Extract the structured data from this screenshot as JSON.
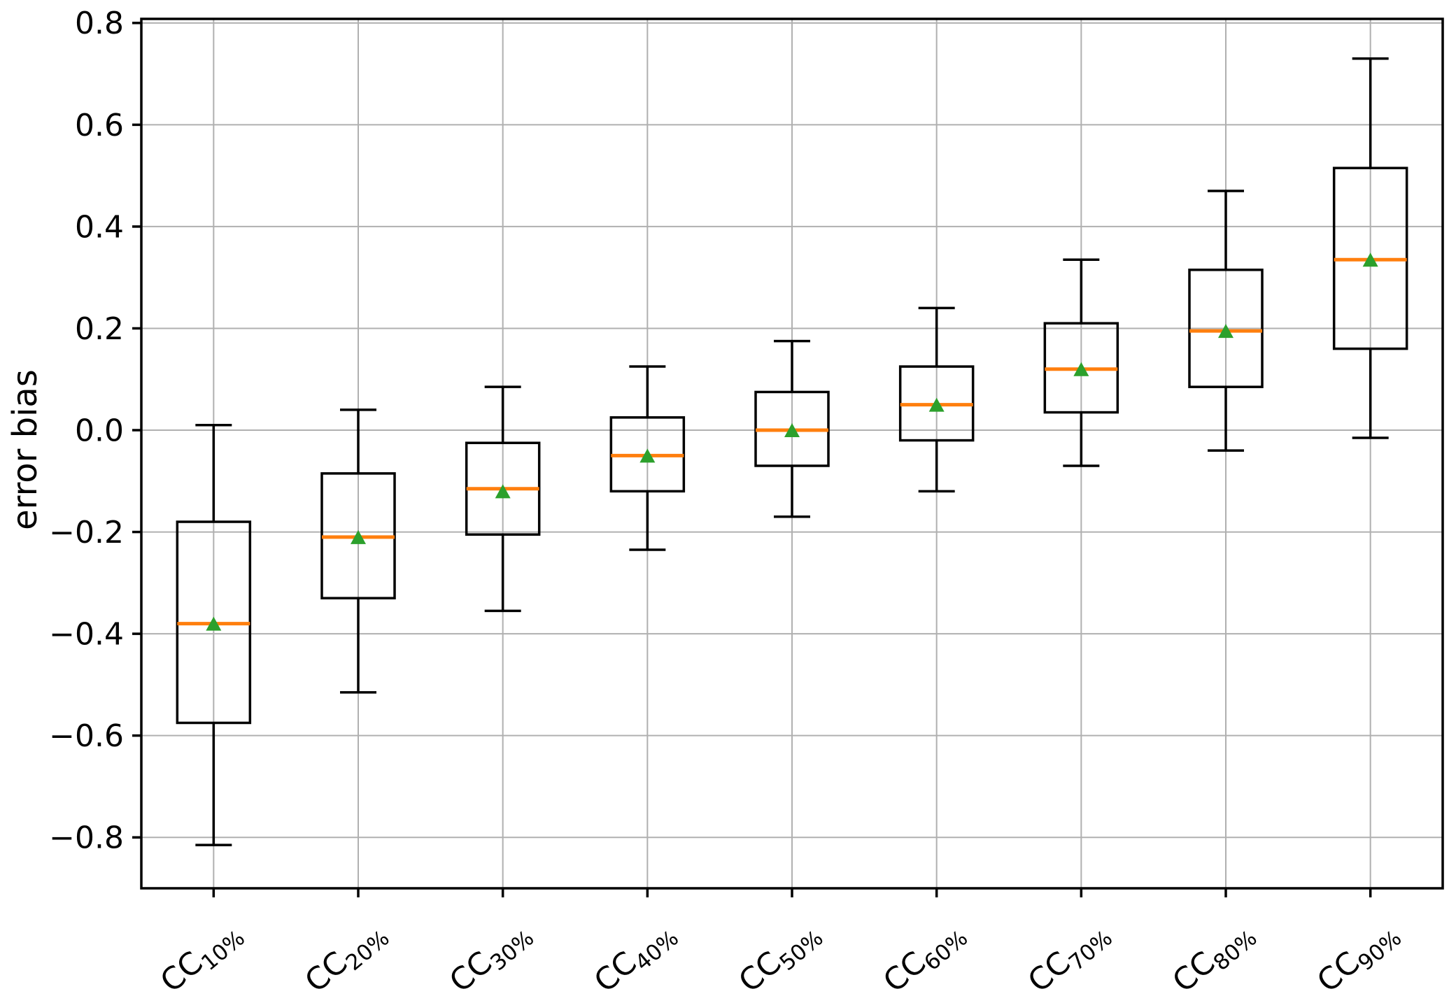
{
  "figure": {
    "background": "#ffffff"
  },
  "chart_data": {
    "type": "box",
    "title": "",
    "xlabel": "",
    "ylabel": "error bias",
    "legend": "none",
    "grid": true,
    "x_tick_rotation_deg": 40,
    "categories": [
      "CC10%",
      "CC20%",
      "CC30%",
      "CC40%",
      "CC50%",
      "CC60%",
      "CC70%",
      "CC80%",
      "CC90%"
    ],
    "category_labels": [
      {
        "base": "CC",
        "sub": "10%"
      },
      {
        "base": "CC",
        "sub": "20%"
      },
      {
        "base": "CC",
        "sub": "30%"
      },
      {
        "base": "CC",
        "sub": "40%"
      },
      {
        "base": "CC",
        "sub": "50%"
      },
      {
        "base": "CC",
        "sub": "60%"
      },
      {
        "base": "CC",
        "sub": "70%"
      },
      {
        "base": "CC",
        "sub": "80%"
      },
      {
        "base": "CC",
        "sub": "90%"
      }
    ],
    "boxes": [
      {
        "label": "CC10%",
        "whisker_low": -0.815,
        "q1": -0.575,
        "median": -0.38,
        "mean": -0.38,
        "q3": -0.18,
        "whisker_high": 0.01
      },
      {
        "label": "CC20%",
        "whisker_low": -0.515,
        "q1": -0.33,
        "median": -0.21,
        "mean": -0.21,
        "q3": -0.085,
        "whisker_high": 0.04
      },
      {
        "label": "CC30%",
        "whisker_low": -0.355,
        "q1": -0.205,
        "median": -0.115,
        "mean": -0.12,
        "q3": -0.025,
        "whisker_high": 0.085
      },
      {
        "label": "CC40%",
        "whisker_low": -0.235,
        "q1": -0.12,
        "median": -0.05,
        "mean": -0.05,
        "q3": 0.025,
        "whisker_high": 0.125
      },
      {
        "label": "CC50%",
        "whisker_low": -0.17,
        "q1": -0.07,
        "median": 0.0,
        "mean": 0.0,
        "q3": 0.075,
        "whisker_high": 0.175
      },
      {
        "label": "CC60%",
        "whisker_low": -0.12,
        "q1": -0.02,
        "median": 0.05,
        "mean": 0.05,
        "q3": 0.125,
        "whisker_high": 0.24
      },
      {
        "label": "CC70%",
        "whisker_low": -0.07,
        "q1": 0.035,
        "median": 0.12,
        "mean": 0.12,
        "q3": 0.21,
        "whisker_high": 0.335
      },
      {
        "label": "CC80%",
        "whisker_low": -0.04,
        "q1": 0.085,
        "median": 0.195,
        "mean": 0.195,
        "q3": 0.315,
        "whisker_high": 0.47
      },
      {
        "label": "CC90%",
        "whisker_low": -0.015,
        "q1": 0.16,
        "median": 0.335,
        "mean": 0.335,
        "q3": 0.515,
        "whisker_high": 0.73
      }
    ],
    "yticks": {
      "values": [
        0.8,
        0.6,
        0.4,
        0.2,
        0.0,
        -0.2,
        -0.4,
        -0.6,
        -0.8
      ],
      "labels": [
        "0.8",
        "0.6",
        "0.4",
        "0.2",
        "0.0",
        "−0.2",
        "−0.4",
        "−0.6",
        "−0.8"
      ]
    },
    "ylim": [
      -0.9,
      0.808
    ],
    "xlim_units": [
      0.5,
      9.5
    ],
    "colors": {
      "box_line": "#000000",
      "whisker": "#000000",
      "median": "#ff7f0e",
      "mean_marker": "#2ca02c",
      "grid": "#b0b0b0",
      "spine": "#000000",
      "tick_label": "#000000",
      "background": "#ffffff"
    },
    "marker": {
      "mean_shape": "triangle-up"
    }
  }
}
